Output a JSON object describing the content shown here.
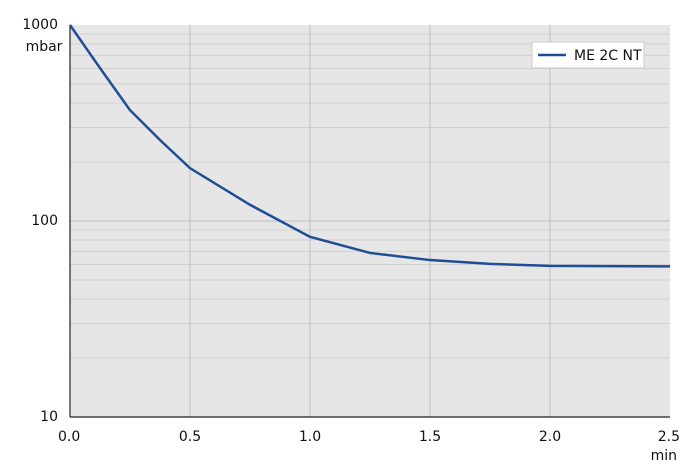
{
  "chart_data": {
    "type": "line",
    "x": [
      0,
      0.125,
      0.25,
      0.375,
      0.5,
      0.75,
      1.0,
      1.25,
      1.5,
      1.75,
      2.0,
      2.5
    ],
    "series": [
      {
        "name": "ME 2C NT",
        "color": "#1f4e96",
        "values": [
          1000,
          603,
          368,
          259,
          186,
          121,
          83,
          68.7,
          63.2,
          60.4,
          59,
          58.7
        ]
      }
    ],
    "xlim": [
      0,
      2.5
    ],
    "xticks": [
      {
        "value": 0,
        "label": "0.0"
      },
      0.5,
      {
        "value": 1,
        "label": "1.0"
      },
      1.5,
      {
        "value": 2,
        "label": "2.0"
      },
      2.5
    ],
    "ylim": [
      10,
      1000
    ],
    "yticks": [
      10,
      100,
      1000
    ],
    "ylog": true,
    "ylabel": "mbar",
    "xlabel": "min",
    "grid": true,
    "legend": "upper right"
  }
}
